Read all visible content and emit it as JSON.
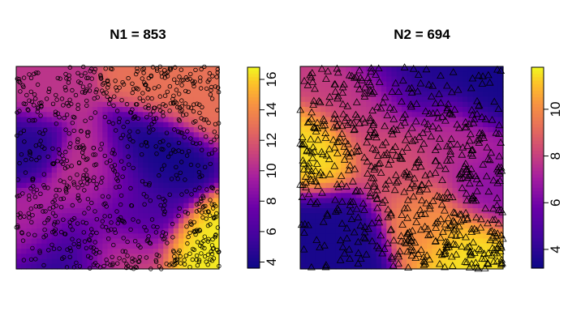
{
  "chart_data": [
    {
      "type": "heatmap",
      "title": "N1 = 853",
      "point_count": 853,
      "marker": "circle",
      "colorbar": {
        "min": 3.6,
        "max": 16.8,
        "ticks": [
          4,
          6,
          8,
          10,
          12,
          14,
          16
        ]
      },
      "field_centers": [
        {
          "x": 0.93,
          "y": 0.05,
          "value": 16.5,
          "spread": 0.1
        },
        {
          "x": 0.8,
          "y": 0.95,
          "value": 13.0,
          "spread": 0.12
        },
        {
          "x": 0.5,
          "y": 0.05,
          "value": 11.5,
          "spread": 0.12
        },
        {
          "x": 0.4,
          "y": 0.42,
          "value": 10.5,
          "spread": 0.12
        },
        {
          "x": 0.1,
          "y": 0.22,
          "value": 10.0,
          "spread": 0.1
        },
        {
          "x": 0.08,
          "y": 0.92,
          "value": 10.5,
          "spread": 0.1
        },
        {
          "x": 0.65,
          "y": 0.55,
          "value": 3.8,
          "spread": 0.1
        },
        {
          "x": 0.25,
          "y": 0.05,
          "value": 4.5,
          "spread": 0.12
        },
        {
          "x": 0.02,
          "y": 0.6,
          "value": 4.5,
          "spread": 0.09
        },
        {
          "x": 0.55,
          "y": 0.28,
          "value": 5.5,
          "spread": 0.12
        }
      ]
    },
    {
      "type": "heatmap",
      "title": "N2 = 694",
      "point_count": 694,
      "marker": "triangle",
      "colorbar": {
        "min": 3.2,
        "max": 11.8,
        "ticks": [
          4,
          6,
          8,
          10
        ]
      },
      "field_centers": [
        {
          "x": 0.1,
          "y": 0.55,
          "value": 11.5,
          "spread": 0.09
        },
        {
          "x": 0.82,
          "y": 0.1,
          "value": 11.5,
          "spread": 0.1
        },
        {
          "x": 0.62,
          "y": 0.25,
          "value": 10.0,
          "spread": 0.1
        },
        {
          "x": 0.48,
          "y": 0.52,
          "value": 8.5,
          "spread": 0.12
        },
        {
          "x": 0.35,
          "y": 0.8,
          "value": 8.0,
          "spread": 0.12
        },
        {
          "x": 0.75,
          "y": 0.6,
          "value": 7.5,
          "spread": 0.12
        },
        {
          "x": 0.15,
          "y": 0.15,
          "value": 3.5,
          "spread": 0.12
        },
        {
          "x": 0.55,
          "y": 0.95,
          "value": 3.6,
          "spread": 0.12
        },
        {
          "x": 0.92,
          "y": 0.9,
          "value": 3.4,
          "spread": 0.1
        },
        {
          "x": 0.92,
          "y": 0.4,
          "value": 6.5,
          "spread": 0.1
        }
      ]
    }
  ]
}
